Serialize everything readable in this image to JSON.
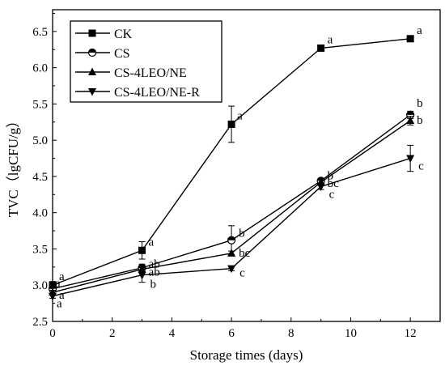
{
  "chart_data": {
    "type": "line",
    "xlabel": "Storage times (days)",
    "ylabel": "TVC（lgCFU/g）",
    "xlim": [
      0,
      13
    ],
    "ylim": [
      2.5,
      6.8
    ],
    "xticks": [
      0,
      2,
      4,
      6,
      8,
      10,
      12
    ],
    "yticks": [
      2.5,
      3.0,
      3.5,
      4.0,
      4.5,
      5.0,
      5.5,
      6.0,
      6.5
    ],
    "ytick_labels": [
      "2.5",
      "3.0",
      "3.5",
      "4.0",
      "4.5",
      "5.0",
      "5.5",
      "6.0",
      "6.5"
    ],
    "legend_position": "top-left",
    "grid": false,
    "x": [
      0,
      3,
      6,
      9,
      12
    ],
    "series": [
      {
        "name": "CK",
        "marker": "square",
        "values": [
          3.0,
          3.48,
          5.22,
          6.27,
          6.4
        ],
        "errors": [
          0.05,
          0.12,
          0.25,
          0.03,
          0.03
        ],
        "labels": [
          "a",
          "a",
          "a",
          "a",
          "a"
        ]
      },
      {
        "name": "CS",
        "marker": "half-circle",
        "values": [
          2.95,
          3.24,
          3.62,
          4.44,
          5.35
        ],
        "errors": [
          0.04,
          0.05,
          0.2,
          0.03,
          0.05
        ],
        "labels": [
          "a",
          "ab",
          "b",
          "b",
          "b"
        ]
      },
      {
        "name": "CS-4LEO/NE",
        "marker": "triangle-up",
        "values": [
          2.9,
          3.22,
          3.44,
          4.42,
          5.27
        ],
        "errors": [
          0.03,
          0.04,
          0.03,
          0.04,
          0.06
        ],
        "labels": [
          "a",
          "ab",
          "bc",
          "bc",
          "b"
        ]
      },
      {
        "name": "CS-4LEO/NE-R",
        "marker": "triangle-down",
        "values": [
          2.85,
          3.14,
          3.23,
          4.36,
          4.75
        ],
        "errors": [
          0.03,
          0.1,
          0.03,
          0.04,
          0.18
        ],
        "labels": [
          "a",
          "b",
          "c",
          "c",
          "c"
        ]
      }
    ]
  }
}
